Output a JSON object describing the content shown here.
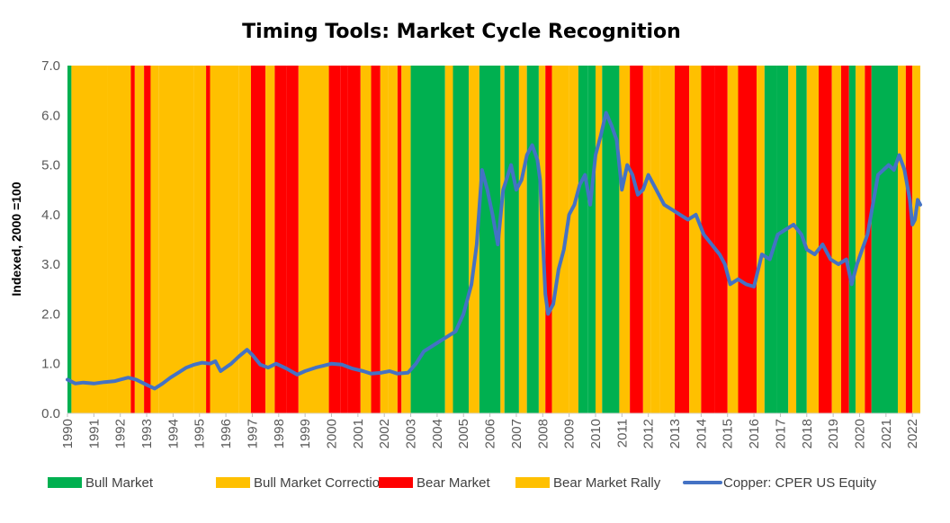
{
  "chart_data": {
    "type": "line",
    "title": "Timing Tools: Market Cycle Recognition",
    "xlabel": "",
    "ylabel": "Indexed, 2000 =100",
    "ylim": [
      0,
      7
    ],
    "yticks": [
      "0.0",
      "1.0",
      "2.0",
      "3.0",
      "4.0",
      "5.0",
      "6.0",
      "7.0"
    ],
    "xlim": [
      1990,
      2022.3
    ],
    "xticks": [
      "1990",
      "1991",
      "1992",
      "1993",
      "1994",
      "1995",
      "1996",
      "1997",
      "1998",
      "1999",
      "2000",
      "2001",
      "2002",
      "2003",
      "2004",
      "2005",
      "2006",
      "2007",
      "2008",
      "2009",
      "2010",
      "2011",
      "2012",
      "2013",
      "2014",
      "2015",
      "2016",
      "2017",
      "2018",
      "2019",
      "2020",
      "2021",
      "2022"
    ],
    "regime_colors": {
      "bull": "#00b050",
      "correction": "#ffc000",
      "bear": "#ff0000",
      "rally": "#ffc000"
    },
    "legend": [
      {
        "key": "bull",
        "label": "Bull Market"
      },
      {
        "key": "correction",
        "label": "Bull Market Correction"
      },
      {
        "key": "bear",
        "label": "Bear Market"
      },
      {
        "key": "rally",
        "label": "Bear Market Rally"
      },
      {
        "key": "line",
        "label": "Copper: CPER US Equity"
      }
    ],
    "line_color": "#4472c4",
    "regimes": [
      {
        "start": 1990.0,
        "end": 1990.15,
        "state": "bull"
      },
      {
        "start": 1990.15,
        "end": 1991.5,
        "state": "correction"
      },
      {
        "start": 1991.5,
        "end": 1992.4,
        "state": "correction"
      },
      {
        "start": 1992.4,
        "end": 1992.55,
        "state": "bear"
      },
      {
        "start": 1992.55,
        "end": 1992.9,
        "state": "rally"
      },
      {
        "start": 1992.9,
        "end": 1993.15,
        "state": "bear"
      },
      {
        "start": 1993.15,
        "end": 1993.45,
        "state": "rally"
      },
      {
        "start": 1993.45,
        "end": 1994.8,
        "state": "correction"
      },
      {
        "start": 1994.8,
        "end": 1995.25,
        "state": "correction"
      },
      {
        "start": 1995.25,
        "end": 1995.4,
        "state": "bear"
      },
      {
        "start": 1995.4,
        "end": 1996.5,
        "state": "correction"
      },
      {
        "start": 1996.5,
        "end": 1996.95,
        "state": "correction"
      },
      {
        "start": 1996.95,
        "end": 1997.5,
        "state": "bear"
      },
      {
        "start": 1997.5,
        "end": 1997.85,
        "state": "rally"
      },
      {
        "start": 1997.85,
        "end": 1998.3,
        "state": "bear"
      },
      {
        "start": 1998.3,
        "end": 1998.75,
        "state": "bear"
      },
      {
        "start": 1998.75,
        "end": 1999.9,
        "state": "correction"
      },
      {
        "start": 1999.9,
        "end": 2000.35,
        "state": "bear"
      },
      {
        "start": 2000.35,
        "end": 2000.6,
        "state": "bear"
      },
      {
        "start": 2000.6,
        "end": 2001.1,
        "state": "bear"
      },
      {
        "start": 2001.1,
        "end": 2001.5,
        "state": "rally"
      },
      {
        "start": 2001.5,
        "end": 2001.85,
        "state": "bear"
      },
      {
        "start": 2001.85,
        "end": 2002.15,
        "state": "rally"
      },
      {
        "start": 2002.15,
        "end": 2002.5,
        "state": "correction"
      },
      {
        "start": 2002.5,
        "end": 2002.65,
        "state": "bear"
      },
      {
        "start": 2002.65,
        "end": 2003.0,
        "state": "correction"
      },
      {
        "start": 2003.0,
        "end": 2004.3,
        "state": "bull"
      },
      {
        "start": 2004.3,
        "end": 2004.6,
        "state": "correction"
      },
      {
        "start": 2004.6,
        "end": 2005.2,
        "state": "bull"
      },
      {
        "start": 2005.2,
        "end": 2005.6,
        "state": "correction"
      },
      {
        "start": 2005.6,
        "end": 2006.4,
        "state": "bull"
      },
      {
        "start": 2006.4,
        "end": 2006.55,
        "state": "correction"
      },
      {
        "start": 2006.55,
        "end": 2007.1,
        "state": "bull"
      },
      {
        "start": 2007.1,
        "end": 2007.4,
        "state": "correction"
      },
      {
        "start": 2007.4,
        "end": 2007.85,
        "state": "bull"
      },
      {
        "start": 2007.85,
        "end": 2008.1,
        "state": "correction"
      },
      {
        "start": 2008.1,
        "end": 2008.35,
        "state": "bear"
      },
      {
        "start": 2008.35,
        "end": 2009.0,
        "state": "rally"
      },
      {
        "start": 2009.0,
        "end": 2009.35,
        "state": "correction"
      },
      {
        "start": 2009.35,
        "end": 2009.7,
        "state": "bull"
      },
      {
        "start": 2009.7,
        "end": 2010.0,
        "state": "bull"
      },
      {
        "start": 2010.0,
        "end": 2010.25,
        "state": "correction"
      },
      {
        "start": 2010.25,
        "end": 2010.9,
        "state": "bull"
      },
      {
        "start": 2010.9,
        "end": 2011.3,
        "state": "correction"
      },
      {
        "start": 2011.3,
        "end": 2011.8,
        "state": "bear"
      },
      {
        "start": 2011.8,
        "end": 2012.1,
        "state": "rally"
      },
      {
        "start": 2012.1,
        "end": 2012.45,
        "state": "correction"
      },
      {
        "start": 2012.45,
        "end": 2013.0,
        "state": "correction"
      },
      {
        "start": 2013.0,
        "end": 2013.55,
        "state": "bear"
      },
      {
        "start": 2013.55,
        "end": 2014.0,
        "state": "correction"
      },
      {
        "start": 2014.0,
        "end": 2014.5,
        "state": "bear"
      },
      {
        "start": 2014.5,
        "end": 2015.0,
        "state": "bear"
      },
      {
        "start": 2015.0,
        "end": 2015.4,
        "state": "rally"
      },
      {
        "start": 2015.4,
        "end": 2016.1,
        "state": "bear"
      },
      {
        "start": 2016.1,
        "end": 2016.4,
        "state": "rally"
      },
      {
        "start": 2016.4,
        "end": 2016.85,
        "state": "bull"
      },
      {
        "start": 2016.85,
        "end": 2017.3,
        "state": "bull"
      },
      {
        "start": 2017.3,
        "end": 2017.6,
        "state": "correction"
      },
      {
        "start": 2017.6,
        "end": 2018.0,
        "state": "bull"
      },
      {
        "start": 2018.0,
        "end": 2018.45,
        "state": "correction"
      },
      {
        "start": 2018.45,
        "end": 2018.95,
        "state": "bear"
      },
      {
        "start": 2018.95,
        "end": 2019.3,
        "state": "rally"
      },
      {
        "start": 2019.3,
        "end": 2019.6,
        "state": "bear"
      },
      {
        "start": 2019.6,
        "end": 2019.85,
        "state": "bull"
      },
      {
        "start": 2019.85,
        "end": 2020.2,
        "state": "correction"
      },
      {
        "start": 2020.2,
        "end": 2020.45,
        "state": "bear"
      },
      {
        "start": 2020.45,
        "end": 2021.45,
        "state": "bull"
      },
      {
        "start": 2021.45,
        "end": 2021.75,
        "state": "correction"
      },
      {
        "start": 2021.75,
        "end": 2022.0,
        "state": "bear"
      },
      {
        "start": 2022.0,
        "end": 2022.3,
        "state": "correction"
      }
    ],
    "series": [
      {
        "name": "Copper: CPER US Equity",
        "points": [
          [
            1990.0,
            0.68
          ],
          [
            1990.3,
            0.6
          ],
          [
            1990.6,
            0.62
          ],
          [
            1991.0,
            0.6
          ],
          [
            1991.4,
            0.63
          ],
          [
            1991.8,
            0.65
          ],
          [
            1992.0,
            0.68
          ],
          [
            1992.3,
            0.72
          ],
          [
            1992.6,
            0.68
          ],
          [
            1992.9,
            0.6
          ],
          [
            1993.3,
            0.5
          ],
          [
            1993.6,
            0.6
          ],
          [
            1993.9,
            0.72
          ],
          [
            1994.2,
            0.82
          ],
          [
            1994.5,
            0.92
          ],
          [
            1994.8,
            0.98
          ],
          [
            1995.1,
            1.02
          ],
          [
            1995.4,
            1.0
          ],
          [
            1995.6,
            1.05
          ],
          [
            1995.8,
            0.85
          ],
          [
            1996.2,
            1.0
          ],
          [
            1996.5,
            1.15
          ],
          [
            1996.8,
            1.28
          ],
          [
            1997.0,
            1.18
          ],
          [
            1997.3,
            0.98
          ],
          [
            1997.6,
            0.92
          ],
          [
            1997.9,
            1.0
          ],
          [
            1998.3,
            0.9
          ],
          [
            1998.7,
            0.78
          ],
          [
            1999.0,
            0.85
          ],
          [
            1999.4,
            0.92
          ],
          [
            1999.7,
            0.96
          ],
          [
            2000.0,
            1.0
          ],
          [
            2000.4,
            0.98
          ],
          [
            2000.8,
            0.9
          ],
          [
            2001.2,
            0.85
          ],
          [
            2001.5,
            0.8
          ],
          [
            2001.9,
            0.82
          ],
          [
            2002.2,
            0.85
          ],
          [
            2002.5,
            0.8
          ],
          [
            2002.9,
            0.82
          ],
          [
            2003.2,
            1.0
          ],
          [
            2003.5,
            1.25
          ],
          [
            2003.8,
            1.35
          ],
          [
            2004.1,
            1.45
          ],
          [
            2004.4,
            1.55
          ],
          [
            2004.7,
            1.65
          ],
          [
            2005.0,
            2.0
          ],
          [
            2005.3,
            2.6
          ],
          [
            2005.5,
            3.4
          ],
          [
            2005.7,
            4.9
          ],
          [
            2005.9,
            4.5
          ],
          [
            2006.1,
            4.0
          ],
          [
            2006.3,
            3.4
          ],
          [
            2006.5,
            4.5
          ],
          [
            2006.8,
            5.0
          ],
          [
            2007.0,
            4.5
          ],
          [
            2007.2,
            4.7
          ],
          [
            2007.4,
            5.2
          ],
          [
            2007.6,
            5.4
          ],
          [
            2007.8,
            5.1
          ],
          [
            2007.9,
            4.7
          ],
          [
            2008.0,
            3.5
          ],
          [
            2008.1,
            2.4
          ],
          [
            2008.2,
            2.0
          ],
          [
            2008.4,
            2.2
          ],
          [
            2008.6,
            2.9
          ],
          [
            2008.8,
            3.3
          ],
          [
            2009.0,
            4.0
          ],
          [
            2009.2,
            4.2
          ],
          [
            2009.4,
            4.6
          ],
          [
            2009.6,
            4.8
          ],
          [
            2009.8,
            4.2
          ],
          [
            2010.0,
            5.2
          ],
          [
            2010.2,
            5.6
          ],
          [
            2010.4,
            6.05
          ],
          [
            2010.6,
            5.8
          ],
          [
            2010.8,
            5.5
          ],
          [
            2011.0,
            4.5
          ],
          [
            2011.2,
            5.0
          ],
          [
            2011.4,
            4.8
          ],
          [
            2011.6,
            4.4
          ],
          [
            2011.8,
            4.5
          ],
          [
            2012.0,
            4.8
          ],
          [
            2012.2,
            4.6
          ],
          [
            2012.4,
            4.4
          ],
          [
            2012.6,
            4.2
          ],
          [
            2012.9,
            4.1
          ],
          [
            2013.2,
            4.0
          ],
          [
            2013.5,
            3.9
          ],
          [
            2013.8,
            4.0
          ],
          [
            2014.1,
            3.6
          ],
          [
            2014.4,
            3.4
          ],
          [
            2014.7,
            3.2
          ],
          [
            2014.9,
            3.0
          ],
          [
            2015.1,
            2.6
          ],
          [
            2015.4,
            2.7
          ],
          [
            2015.7,
            2.6
          ],
          [
            2016.0,
            2.55
          ],
          [
            2016.3,
            3.2
          ],
          [
            2016.6,
            3.1
          ],
          [
            2016.9,
            3.6
          ],
          [
            2017.2,
            3.7
          ],
          [
            2017.5,
            3.8
          ],
          [
            2017.8,
            3.6
          ],
          [
            2018.0,
            3.3
          ],
          [
            2018.3,
            3.2
          ],
          [
            2018.6,
            3.4
          ],
          [
            2018.9,
            3.1
          ],
          [
            2019.2,
            3.0
          ],
          [
            2019.5,
            3.1
          ],
          [
            2019.7,
            2.6
          ],
          [
            2019.9,
            3.0
          ],
          [
            2020.1,
            3.3
          ],
          [
            2020.3,
            3.6
          ],
          [
            2020.5,
            4.2
          ],
          [
            2020.7,
            4.8
          ],
          [
            2020.9,
            4.9
          ],
          [
            2021.1,
            5.0
          ],
          [
            2021.3,
            4.9
          ],
          [
            2021.5,
            5.2
          ],
          [
            2021.7,
            4.9
          ],
          [
            2021.9,
            4.3
          ],
          [
            2022.0,
            3.8
          ],
          [
            2022.1,
            3.9
          ],
          [
            2022.2,
            4.3
          ],
          [
            2022.3,
            4.2
          ]
        ]
      }
    ]
  }
}
